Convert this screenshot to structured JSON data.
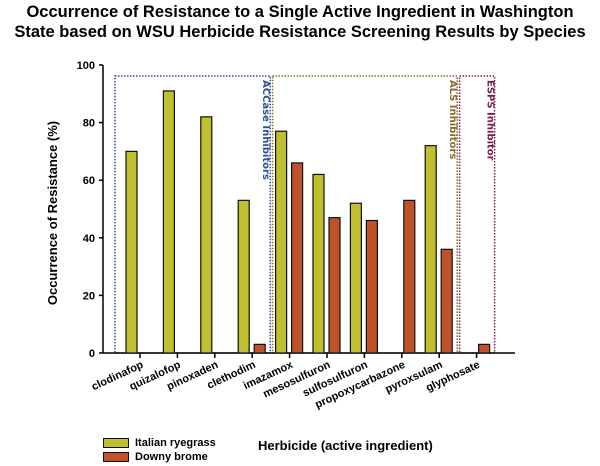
{
  "chart_data": {
    "type": "bar",
    "title": "Occurrence of Resistance to a Single Active Ingredient in Washington State based on WSU Herbicide Resistance Screening Results by Species",
    "title_lines": [
      "Occurrence of Resistance to a Single Active Ingredient in Washington",
      "State based on WSU Herbicide Resistance Screening Results by Species"
    ],
    "xlabel": "Herbicide (active ingredient)",
    "ylabel": "Occurrence of Resistance (%)",
    "ylim": [
      0,
      100
    ],
    "yticks": [
      0,
      20,
      40,
      60,
      80,
      100
    ],
    "grid": false,
    "legend_position": "bottom-left",
    "categories": [
      "clodinafop",
      "quizalofop",
      "pinoxaden",
      "clethodim",
      "imazamox",
      "mesosulfuron",
      "sulfosulfuron",
      "propoxycarbazone",
      "pyroxsulam",
      "glyphosate"
    ],
    "series": [
      {
        "name": "Italian ryegrass",
        "color": "#bfbf30",
        "values": [
          70,
          91,
          82,
          53,
          77,
          62,
          52,
          null,
          72,
          null
        ]
      },
      {
        "name": "Downy brome",
        "color": "#c0522a",
        "values": [
          null,
          null,
          null,
          3,
          66,
          47,
          46,
          53,
          36,
          3
        ]
      }
    ],
    "groups": [
      {
        "label": "ACCase Inhibitors",
        "color": "#2f4f8f",
        "start": 0,
        "end": 3
      },
      {
        "label": "ALS Inhibitors",
        "color": "#8a6a2a",
        "start": 4,
        "end": 8
      },
      {
        "label": "ESPS Inhibitor",
        "color": "#7a1f4a",
        "start": 9,
        "end": 9
      }
    ]
  }
}
